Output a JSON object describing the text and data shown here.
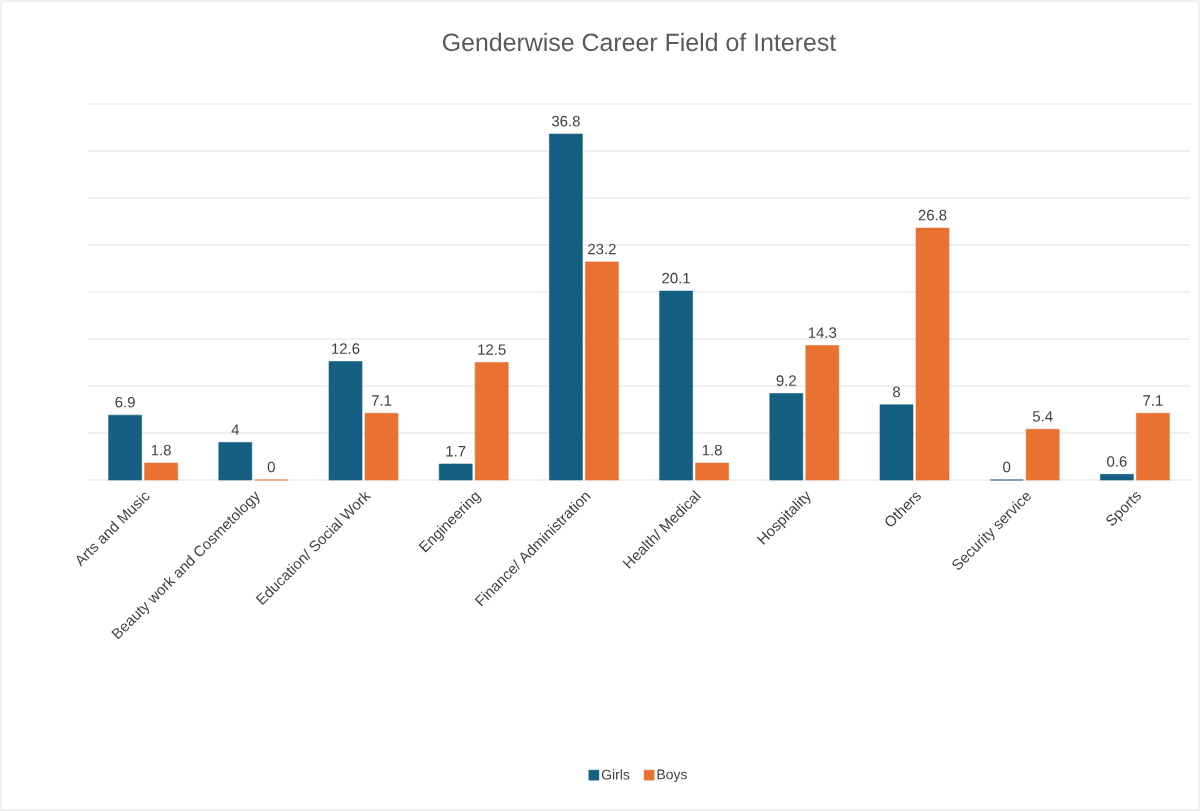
{
  "chart_data": {
    "type": "bar",
    "title": "Genderwise Career Field of Interest",
    "categories": [
      "Arts and Music",
      "Beauty work and Cosmetology",
      "Education/ Social Work",
      "Engineering",
      "Finance/ Administration",
      "Health/ Medical",
      "Hospitality",
      "Others",
      "Security service",
      "Sports"
    ],
    "series": [
      {
        "name": "Girls",
        "color": "#156082",
        "values": [
          6.9,
          4,
          12.6,
          1.7,
          36.8,
          20.1,
          9.2,
          8,
          0,
          0.6
        ]
      },
      {
        "name": "Boys",
        "color": "#e97132",
        "values": [
          1.8,
          0,
          7.1,
          12.5,
          23.2,
          1.8,
          14.3,
          26.8,
          5.4,
          7.1
        ]
      }
    ],
    "ylim": [
      0,
      40
    ],
    "yticks": [
      {
        "value": 0,
        "label": null
      },
      {
        "value": 5,
        "label": null
      },
      {
        "value": 10,
        "label": null
      },
      {
        "value": 15,
        "label": null
      },
      {
        "value": 20,
        "label": null
      },
      {
        "value": 25,
        "label": null
      },
      {
        "value": 30,
        "label": null
      },
      {
        "value": 35,
        "label": null
      },
      {
        "value": 40,
        "label": null
      }
    ],
    "grid": "y",
    "legend": "bottom",
    "data_labels": true,
    "tick_labels": "x"
  }
}
